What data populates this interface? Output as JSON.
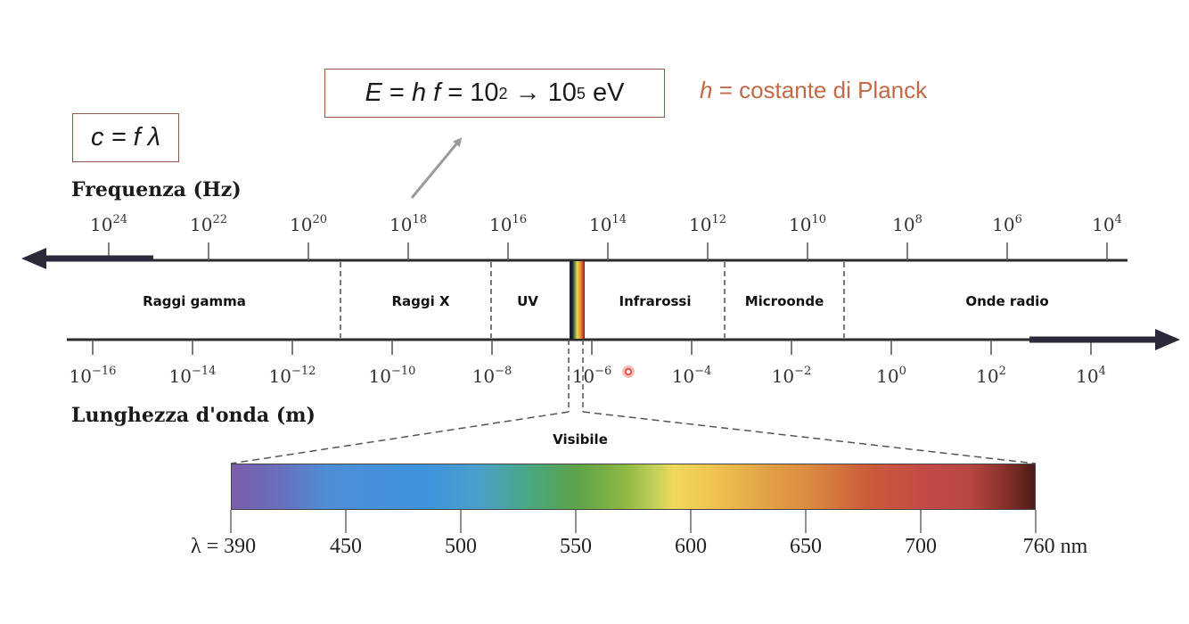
{
  "formulas": {
    "energy": {
      "E": "E",
      "eq1": " = ",
      "h": "h",
      "f": "f",
      "eq2": " = 10",
      "exp_low": "2",
      "arrow": " → 10",
      "exp_high": "5",
      "unit": " eV"
    },
    "wave": {
      "c": "c",
      "eq": " = ",
      "f": "f",
      "lambda": "λ"
    },
    "planck": {
      "h": "h",
      "text": " = costante di Planck"
    }
  },
  "frequency_axis": {
    "title": "Frequenza (Hz)",
    "base": "10",
    "exponents": [
      "24",
      "22",
      "20",
      "18",
      "16",
      "14",
      "12",
      "10",
      "8",
      "6",
      "4"
    ]
  },
  "wavelength_axis": {
    "title": "Lunghezza d'onda (m)",
    "base": "10",
    "exponents": [
      "−16",
      "−14",
      "−12",
      "−10",
      "−8",
      "−6",
      "−4",
      "−2",
      "0",
      "2",
      "4"
    ]
  },
  "bands": [
    "Raggi gamma",
    "Raggi X",
    "UV",
    "Infrarossi",
    "Microonde",
    "Onde radio"
  ],
  "visible": {
    "title": "Visibile",
    "wavelengths_nm": [
      "λ = 390",
      "450",
      "500",
      "550",
      "600",
      "650",
      "700",
      "760 nm"
    ]
  },
  "colors": {
    "box_border": "#8b5a44",
    "planck_text": "#c06a48",
    "axis_line": "#2b2b2b",
    "big_arrow": "#2a2a3a",
    "pointer_arrow": "#9a9a9a"
  }
}
